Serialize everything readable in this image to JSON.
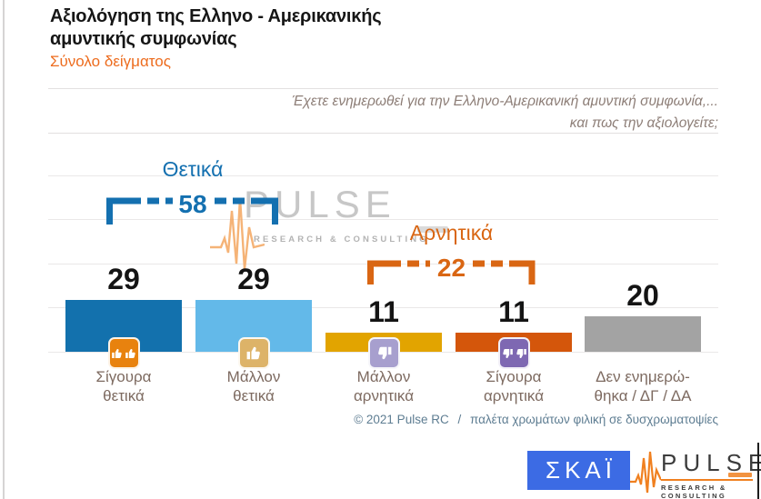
{
  "header": {
    "title_line1": "Αξιολόγηση της Ελληνο - Αμερικανικής",
    "title_line2": "αμυντικής συμφωνίας",
    "subtitle": "Σύνολο δείγματος",
    "subtitle_color": "#ed6c1e"
  },
  "question": {
    "line1": "Έχετε ενημερωθεί για την Ελληνο-Αμερικανική αμυντική συμφωνία,...",
    "line2": "και πως την αξιολογείτε;"
  },
  "chart_data": {
    "type": "bar",
    "title": "Αξιολόγηση της Ελληνο - Αμερικανικής αμυντικής συμφωνίας",
    "subtitle": "Σύνολο δείγματος",
    "categories": [
      "Σίγουρα\nθετικά",
      "Μάλλον\nθετικά",
      "Μάλλον\nαρνητικά",
      "Σίγουρα\nαρνητικά",
      "Δεν ενημερώ-\nθηκα / ΔΓ / ΔΑ"
    ],
    "values": [
      29,
      29,
      11,
      11,
      20
    ],
    "bar_colors": [
      "#1371ad",
      "#63b9e9",
      "#e2a400",
      "#d4560b",
      "#a3a3a3"
    ],
    "icons": [
      "thumbs-up-double",
      "thumbs-up",
      "thumbs-down",
      "thumbs-down-double",
      null
    ],
    "icon_colors": [
      "#e8820e",
      "#ddb368",
      "#a79fce",
      "#7e68b2",
      null
    ],
    "ylim": [
      0,
      100
    ],
    "gridline_values": [
      0,
      25,
      50,
      75,
      100
    ],
    "groups": [
      {
        "label": "Θετικά",
        "value": 58,
        "color": "#1470b0",
        "from": 0,
        "to": 1
      },
      {
        "label": "Αρνητικά",
        "value": 22,
        "color": "#d96613",
        "from": 2,
        "to": 3
      }
    ]
  },
  "footer": {
    "credit": "© 2021 Pulse RC",
    "divider": "/",
    "note": "παλέτα χρωμάτων φιλική σε δυσχρωματοψίες"
  },
  "watermark": {
    "brand": "PULSE",
    "tagline": "RESEARCH & CONSULTING"
  },
  "logos": {
    "skai": {
      "text": "ΣΚΑΪ",
      "bg": "#3c6be4"
    },
    "pulse": {
      "brand": "PULSE",
      "tagline": "RESEARCH & CONSULTING",
      "accent": "#f08020"
    }
  }
}
